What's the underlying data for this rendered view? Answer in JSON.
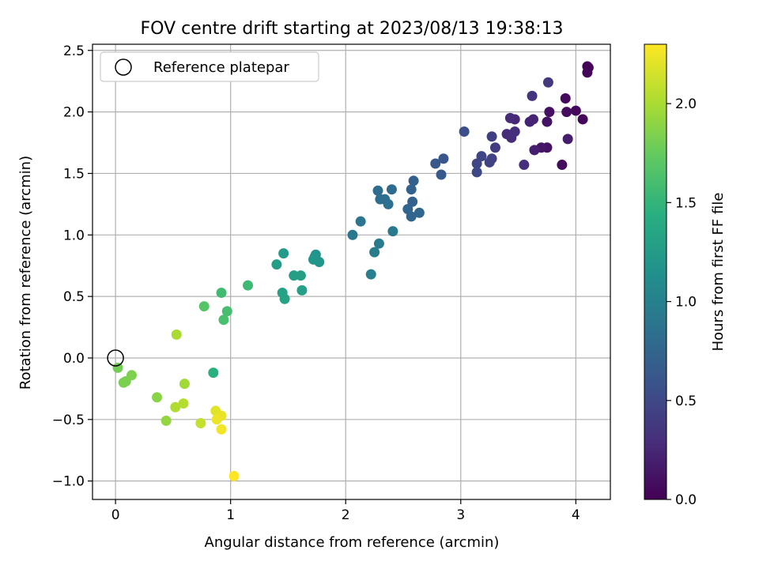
{
  "chart_data": {
    "type": "scatter",
    "title": "FOV centre drift starting at 2023/08/13 19:38:13",
    "xlabel": "Angular distance from reference (arcmin)",
    "ylabel": "Rotation from reference (arcmin)",
    "xlim": [
      -0.2,
      4.3
    ],
    "ylim": [
      -1.15,
      2.55
    ],
    "xticks": [
      0,
      1,
      2,
      3,
      4
    ],
    "xtick_labels": [
      "0",
      "1",
      "2",
      "3",
      "4"
    ],
    "yticks": [
      -1.0,
      -0.5,
      0.0,
      0.5,
      1.0,
      1.5,
      2.0,
      2.5
    ],
    "ytick_labels": [
      "−1.0",
      "−0.5",
      "0.0",
      "0.5",
      "1.0",
      "1.5",
      "2.0",
      "2.5"
    ],
    "grid": true,
    "legend": {
      "position": "upper-left",
      "entries": [
        "Reference platepar"
      ]
    },
    "reference_point": {
      "x": 0.0,
      "y": 0.0
    },
    "colorbar": {
      "label": "Hours from first FF file",
      "range": [
        0.0,
        2.3
      ],
      "ticks": [
        0.0,
        0.5,
        1.0,
        1.5,
        2.0
      ],
      "tick_labels": [
        "0.0",
        "0.5",
        "1.0",
        "1.5",
        "2.0"
      ],
      "colormap": "viridis"
    },
    "points": [
      {
        "x": 4.1,
        "y": 2.37,
        "h": 0.01
      },
      {
        "x": 4.11,
        "y": 2.36,
        "h": 0.02
      },
      {
        "x": 4.1,
        "y": 2.32,
        "h": 0.03
      },
      {
        "x": 4.06,
        "y": 1.94,
        "h": 0.04
      },
      {
        "x": 4.0,
        "y": 2.01,
        "h": 0.05
      },
      {
        "x": 3.91,
        "y": 2.11,
        "h": 0.06
      },
      {
        "x": 3.92,
        "y": 2.0,
        "h": 0.08
      },
      {
        "x": 3.88,
        "y": 1.57,
        "h": 0.07
      },
      {
        "x": 3.77,
        "y": 2.0,
        "h": 0.1
      },
      {
        "x": 3.75,
        "y": 1.92,
        "h": 0.12
      },
      {
        "x": 3.75,
        "y": 1.71,
        "h": 0.11
      },
      {
        "x": 3.7,
        "y": 1.71,
        "h": 0.13
      },
      {
        "x": 3.93,
        "y": 1.78,
        "h": 0.18
      },
      {
        "x": 3.64,
        "y": 1.69,
        "h": 0.2
      },
      {
        "x": 3.6,
        "y": 1.92,
        "h": 0.22
      },
      {
        "x": 3.63,
        "y": 1.94,
        "h": 0.23
      },
      {
        "x": 3.47,
        "y": 1.94,
        "h": 0.25
      },
      {
        "x": 3.43,
        "y": 1.95,
        "h": 0.27
      },
      {
        "x": 3.4,
        "y": 1.82,
        "h": 0.28
      },
      {
        "x": 3.44,
        "y": 1.79,
        "h": 0.29
      },
      {
        "x": 3.47,
        "y": 1.84,
        "h": 0.3
      },
      {
        "x": 3.55,
        "y": 1.57,
        "h": 0.31
      },
      {
        "x": 3.62,
        "y": 2.13,
        "h": 0.35
      },
      {
        "x": 3.76,
        "y": 2.24,
        "h": 0.38
      },
      {
        "x": 3.3,
        "y": 1.71,
        "h": 0.4
      },
      {
        "x": 3.27,
        "y": 1.8,
        "h": 0.42
      },
      {
        "x": 3.27,
        "y": 1.62,
        "h": 0.44
      },
      {
        "x": 3.25,
        "y": 1.59,
        "h": 0.45
      },
      {
        "x": 3.18,
        "y": 1.64,
        "h": 0.47
      },
      {
        "x": 3.14,
        "y": 1.58,
        "h": 0.48
      },
      {
        "x": 3.14,
        "y": 1.51,
        "h": 0.5
      },
      {
        "x": 3.03,
        "y": 1.84,
        "h": 0.55
      },
      {
        "x": 2.85,
        "y": 1.62,
        "h": 0.62
      },
      {
        "x": 2.78,
        "y": 1.58,
        "h": 0.63
      },
      {
        "x": 2.83,
        "y": 1.49,
        "h": 0.64
      },
      {
        "x": 2.59,
        "y": 1.44,
        "h": 0.7
      },
      {
        "x": 2.57,
        "y": 1.37,
        "h": 0.72
      },
      {
        "x": 2.58,
        "y": 1.27,
        "h": 0.73
      },
      {
        "x": 2.54,
        "y": 1.21,
        "h": 0.74
      },
      {
        "x": 2.57,
        "y": 1.15,
        "h": 0.75
      },
      {
        "x": 2.64,
        "y": 1.18,
        "h": 0.76
      },
      {
        "x": 2.4,
        "y": 1.37,
        "h": 0.8
      },
      {
        "x": 2.28,
        "y": 1.36,
        "h": 0.82
      },
      {
        "x": 2.3,
        "y": 1.29,
        "h": 0.83
      },
      {
        "x": 2.34,
        "y": 1.29,
        "h": 0.84
      },
      {
        "x": 2.37,
        "y": 1.25,
        "h": 0.85
      },
      {
        "x": 2.13,
        "y": 1.11,
        "h": 0.9
      },
      {
        "x": 2.06,
        "y": 1.0,
        "h": 0.92
      },
      {
        "x": 2.41,
        "y": 1.03,
        "h": 0.93
      },
      {
        "x": 2.29,
        "y": 0.93,
        "h": 0.95
      },
      {
        "x": 2.25,
        "y": 0.86,
        "h": 0.96
      },
      {
        "x": 2.22,
        "y": 0.68,
        "h": 0.98
      },
      {
        "x": 1.74,
        "y": 0.84,
        "h": 1.18
      },
      {
        "x": 1.73,
        "y": 0.82,
        "h": 1.19
      },
      {
        "x": 1.72,
        "y": 0.8,
        "h": 1.2
      },
      {
        "x": 1.77,
        "y": 0.78,
        "h": 1.21
      },
      {
        "x": 1.46,
        "y": 0.85,
        "h": 1.25
      },
      {
        "x": 1.4,
        "y": 0.76,
        "h": 1.27
      },
      {
        "x": 1.61,
        "y": 0.67,
        "h": 1.28
      },
      {
        "x": 1.55,
        "y": 0.67,
        "h": 1.29
      },
      {
        "x": 1.62,
        "y": 0.55,
        "h": 1.3
      },
      {
        "x": 1.45,
        "y": 0.53,
        "h": 1.32
      },
      {
        "x": 1.47,
        "y": 0.48,
        "h": 1.33
      },
      {
        "x": 0.85,
        "y": -0.12,
        "h": 1.45
      },
      {
        "x": 1.15,
        "y": 0.59,
        "h": 1.55
      },
      {
        "x": 0.92,
        "y": 0.53,
        "h": 1.57
      },
      {
        "x": 0.97,
        "y": 0.38,
        "h": 1.6
      },
      {
        "x": 0.94,
        "y": 0.31,
        "h": 1.62
      },
      {
        "x": 0.77,
        "y": 0.42,
        "h": 1.68
      },
      {
        "x": 0.02,
        "y": -0.08,
        "h": 1.8
      },
      {
        "x": 0.09,
        "y": -0.19,
        "h": 1.82
      },
      {
        "x": 0.07,
        "y": -0.2,
        "h": 1.83
      },
      {
        "x": 0.14,
        "y": -0.14,
        "h": 1.84
      },
      {
        "x": 0.36,
        "y": -0.32,
        "h": 1.88
      },
      {
        "x": 0.44,
        "y": -0.51,
        "h": 1.92
      },
      {
        "x": 0.6,
        "y": -0.21,
        "h": 1.97
      },
      {
        "x": 0.53,
        "y": 0.19,
        "h": 2.0
      },
      {
        "x": 0.52,
        "y": -0.4,
        "h": 2.02
      },
      {
        "x": 0.59,
        "y": -0.37,
        "h": 2.04
      },
      {
        "x": 0.74,
        "y": -0.53,
        "h": 2.1
      },
      {
        "x": 0.87,
        "y": -0.43,
        "h": 2.2
      },
      {
        "x": 0.92,
        "y": -0.47,
        "h": 2.22
      },
      {
        "x": 0.88,
        "y": -0.5,
        "h": 2.24
      },
      {
        "x": 0.92,
        "y": -0.58,
        "h": 2.26
      },
      {
        "x": 1.03,
        "y": -0.96,
        "h": 2.3
      }
    ]
  }
}
